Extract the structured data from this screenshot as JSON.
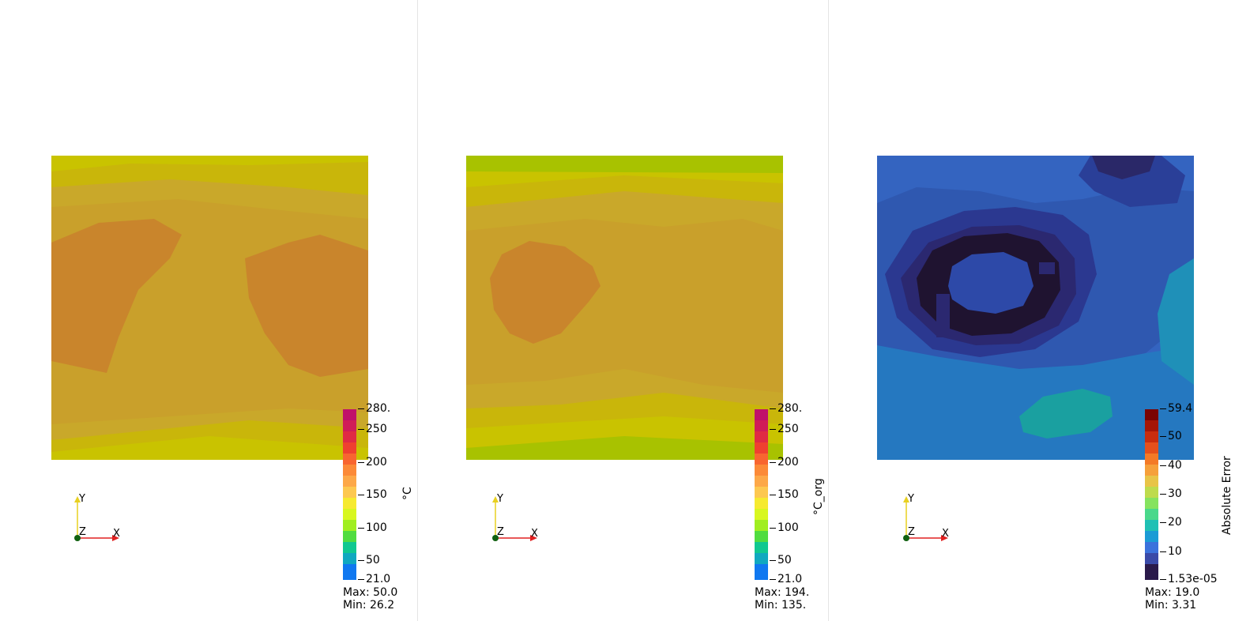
{
  "views": [
    {
      "scalar_title": "°C",
      "ticks": [
        "280.",
        "250",
        "200",
        "150",
        "100",
        "50",
        "21.0"
      ],
      "max_label": "Max: 50.0",
      "min_label": "Min: 26.2",
      "colormap": "rainbow",
      "axes": {
        "y": "Y",
        "z": "Z",
        "x": "X"
      }
    },
    {
      "scalar_title": "°C_org",
      "ticks": [
        "280.",
        "250",
        "200",
        "150",
        "100",
        "50",
        "21.0"
      ],
      "max_label": "Max: 194.",
      "min_label": "Min: 135.",
      "colormap": "rainbow",
      "axes": {
        "y": "Y",
        "z": "Z",
        "x": "X"
      }
    },
    {
      "scalar_title": "Absolute Error",
      "ticks": [
        "59.4",
        "50",
        "40",
        "30",
        "20",
        "10",
        "1.53e-05"
      ],
      "max_label": "Max: 19.0",
      "min_label": "Min: 3.31",
      "colormap": "turbo",
      "axes": {
        "y": "Y",
        "z": "Z",
        "x": "X"
      }
    }
  ],
  "colors": {
    "yellow_green": "#c8c800",
    "mustard": "#c9a02b",
    "orange": "#c9852c",
    "blue": "#3060c0",
    "dark_navy": "#1f1330",
    "teal": "#1a9a9a",
    "axis_y": "#e8d020",
    "axis_x": "#e02020",
    "axis_origin": "#106010"
  }
}
